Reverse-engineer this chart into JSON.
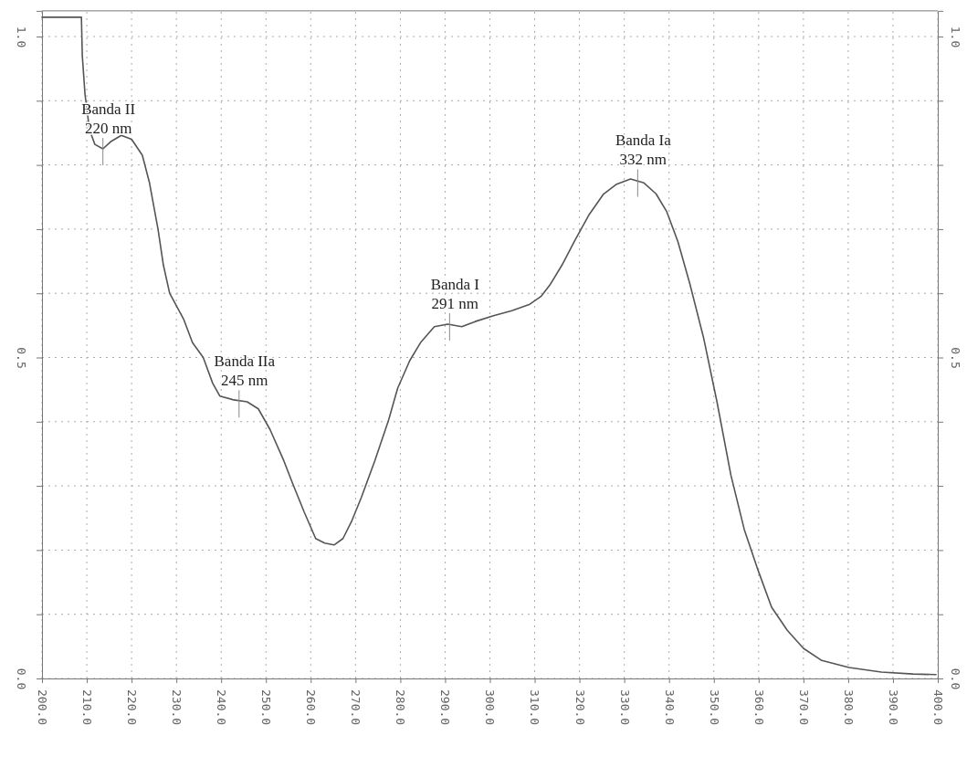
{
  "chart_data": {
    "type": "line",
    "x": [
      200,
      208.8,
      209,
      209.6,
      210.6,
      211.8,
      213.6,
      215.3,
      217.7,
      220,
      222.4,
      224,
      225.9,
      227.1,
      228.5,
      231.6,
      233.6,
      236,
      238.1,
      239.7,
      242.8,
      245.8,
      248.3,
      250.9,
      254,
      256,
      258.5,
      261.1,
      263.1,
      265.2,
      267.2,
      269.2,
      271.3,
      274.3,
      277.4,
      279.4,
      282.1,
      284.5,
      287.6,
      290.6,
      293.7,
      296.7,
      300.8,
      304.9,
      308.9,
      311.4,
      313.4,
      316.1,
      319.1,
      322.2,
      325.3,
      328.3,
      331.4,
      334.4,
      337.1,
      339.5,
      342,
      344.6,
      347.7,
      350.7,
      353.8,
      356.8,
      359.9,
      362.9,
      366.4,
      370,
      374.1,
      380.2,
      387.4,
      394.5,
      399.6
    ],
    "series": [
      {
        "color": "#555555",
        "values": [
          1.03,
          1.03,
          0.97,
          0.91,
          0.855,
          0.832,
          0.825,
          0.836,
          0.846,
          0.84,
          0.815,
          0.772,
          0.7,
          0.644,
          0.6,
          0.56,
          0.523,
          0.5,
          0.46,
          0.44,
          0.434,
          0.431,
          0.42,
          0.388,
          0.339,
          0.303,
          0.26,
          0.218,
          0.211,
          0.208,
          0.218,
          0.246,
          0.282,
          0.339,
          0.403,
          0.452,
          0.495,
          0.523,
          0.548,
          0.552,
          0.548,
          0.556,
          0.565,
          0.573,
          0.583,
          0.595,
          0.613,
          0.644,
          0.684,
          0.723,
          0.754,
          0.77,
          0.778,
          0.772,
          0.755,
          0.727,
          0.68,
          0.616,
          0.531,
          0.431,
          0.317,
          0.232,
          0.168,
          0.111,
          0.075,
          0.047,
          0.028,
          0.017,
          0.01,
          0.007,
          0.006
        ]
      }
    ],
    "xlim": [
      200,
      400
    ],
    "xticks": [
      {
        "value": 200,
        "label": "200.0"
      },
      {
        "value": 210,
        "label": "210.0"
      },
      {
        "value": 220,
        "label": "220.0"
      },
      {
        "value": 230,
        "label": "230.0"
      },
      {
        "value": 240,
        "label": "240.0"
      },
      {
        "value": 250,
        "label": "250.0"
      },
      {
        "value": 260,
        "label": "260.0"
      },
      {
        "value": 270,
        "label": "270.0"
      },
      {
        "value": 280,
        "label": "280.0"
      },
      {
        "value": 290,
        "label": "290.0"
      },
      {
        "value": 300,
        "label": "300.0"
      },
      {
        "value": 310,
        "label": "310.0"
      },
      {
        "value": 320,
        "label": "320.0"
      },
      {
        "value": 330,
        "label": "330.0"
      },
      {
        "value": 340,
        "label": "340.0"
      },
      {
        "value": 350,
        "label": "350.0"
      },
      {
        "value": 360,
        "label": "360.0"
      },
      {
        "value": 370,
        "label": "370.0"
      },
      {
        "value": 380,
        "label": "380.0"
      },
      {
        "value": 390,
        "label": "390.0"
      },
      {
        "value": 400,
        "label": "400.0"
      }
    ],
    "ylim": [
      0,
      1.04
    ],
    "yticks": [
      {
        "value": 0,
        "label": "0.0"
      },
      {
        "value": 0.1,
        "label": null
      },
      {
        "value": 0.2,
        "label": null
      },
      {
        "value": 0.3,
        "label": null
      },
      {
        "value": 0.4,
        "label": null
      },
      {
        "value": 0.5,
        "label": "0.5"
      },
      {
        "value": 0.6,
        "label": null
      },
      {
        "value": 0.7,
        "label": null
      },
      {
        "value": 0.8,
        "label": null
      },
      {
        "value": 0.9,
        "label": null
      },
      {
        "value": 1,
        "label": "1.0"
      }
    ],
    "y2lim": [
      0,
      1.04
    ],
    "y2ticks": [
      {
        "value": 0,
        "label": "0.0"
      },
      {
        "value": 0.1,
        "label": null
      },
      {
        "value": 0.2,
        "label": null
      },
      {
        "value": 0.3,
        "label": null
      },
      {
        "value": 0.4,
        "label": null
      },
      {
        "value": 0.5,
        "label": "0.5"
      },
      {
        "value": 0.6,
        "label": null
      },
      {
        "value": 0.7,
        "label": null
      },
      {
        "value": 0.8,
        "label": null
      },
      {
        "value": 0.9,
        "label": null
      },
      {
        "value": 1,
        "label": "1.0"
      }
    ],
    "grid": true,
    "line_style": "solid",
    "annotations": [
      {
        "text": "Banda II\n220 nm",
        "x": 213.6,
        "y": 0.825
      },
      {
        "text": "Banda IIa\n245 nm",
        "x": 244,
        "y": 0.432
      },
      {
        "text": "Banda I\n291 nm",
        "x": 291,
        "y": 0.552
      },
      {
        "text": "Banda Ia\n332 nm",
        "x": 333,
        "y": 0.776
      }
    ]
  }
}
